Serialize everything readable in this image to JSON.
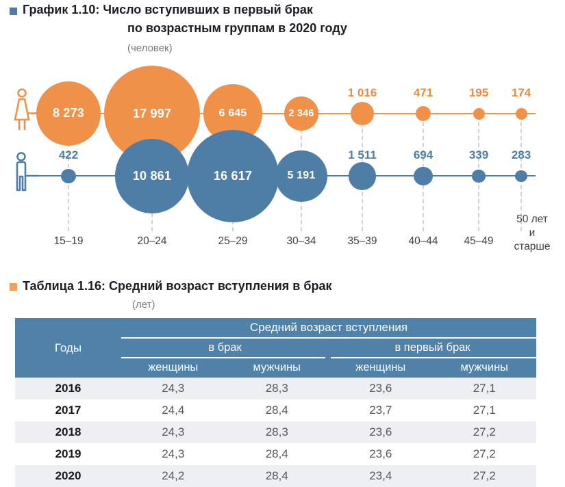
{
  "chart": {
    "bullet_color": "#4e7ca9",
    "title_line1": "График 1.10: Число вступивших в первый брак",
    "title_line2": "по возрастным группам в 2020 году",
    "unit": "(человек)"
  },
  "chart_data": {
    "type": "bubble",
    "title": "Число вступивших в первый брак по возрастным группам в 2020 году",
    "unit": "человек",
    "categories": [
      "15–19",
      "20–24",
      "25–29",
      "30–34",
      "35–39",
      "40–44",
      "45–49",
      "50 лет\nи старше"
    ],
    "series": [
      {
        "name": "женщины",
        "color": "#f0914a",
        "label_color": "#ed8a3e",
        "values": [
          8273,
          17997,
          6645,
          2346,
          1016,
          471,
          195,
          174
        ],
        "labels": [
          "8 273",
          "17 997",
          "6 645",
          "2 346",
          "1 016",
          "471",
          "195",
          "174"
        ]
      },
      {
        "name": "мужчины",
        "color": "#4e7ea6",
        "label_color": "#4d7ea8",
        "values": [
          422,
          10861,
          16617,
          5191,
          1511,
          694,
          339,
          283
        ],
        "labels": [
          "422",
          "10 861",
          "16 617",
          "5 191",
          "1 511",
          "694",
          "339",
          "283"
        ]
      }
    ],
    "legend_icons": [
      "woman-pictogram",
      "man-pictogram"
    ],
    "layout_hints": {
      "rows": "women above, men below",
      "size": "area proportional to value",
      "grid": "dashed vertical guides to age labels"
    }
  },
  "table": {
    "bullet_color": "#f0a05c",
    "title": "Таблица 1.16: Средний возраст вступления в брак",
    "unit": "(лет)",
    "header": {
      "years": "Годы",
      "group": "Средний возраст вступления",
      "sub1": "в брак",
      "sub2": "в первый брак",
      "cols": [
        "женщины",
        "мужчины",
        "женщины",
        "мужчины"
      ]
    },
    "rows": [
      {
        "year": "2016",
        "values": [
          "24,3",
          "28,3",
          "23,6",
          "27,1"
        ]
      },
      {
        "year": "2017",
        "values": [
          "24,4",
          "28,4",
          "23,7",
          "27,1"
        ]
      },
      {
        "year": "2018",
        "values": [
          "24,3",
          "28,3",
          "23,6",
          "27,2"
        ]
      },
      {
        "year": "2019",
        "values": [
          "24,3",
          "28,4",
          "23,6",
          "27,2"
        ]
      },
      {
        "year": "2020",
        "values": [
          "24,2",
          "28,4",
          "23,4",
          "27,2"
        ]
      }
    ],
    "colors": {
      "header_bg": "#4f81a9",
      "alt_row_bg": "#edeff2",
      "year_text": "#17171f",
      "value_text": "#55575a"
    }
  }
}
